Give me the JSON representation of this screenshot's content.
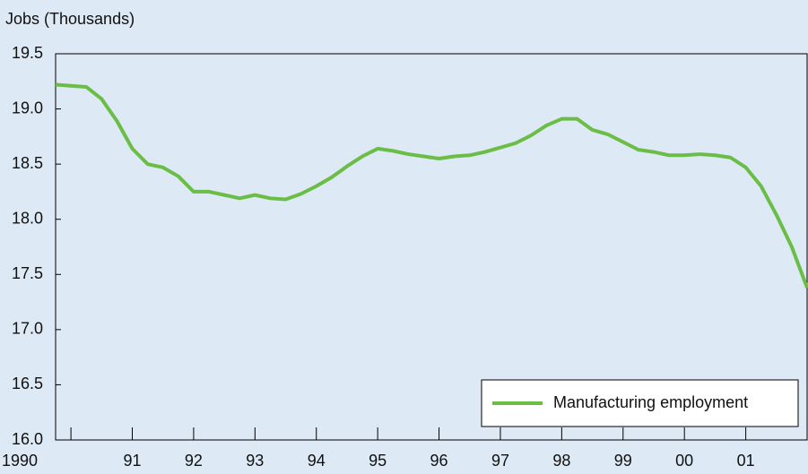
{
  "chart_data": {
    "type": "line",
    "y_label": "Jobs (Thousands)",
    "x": [
      1989.75,
      1990.0,
      1990.25,
      1990.5,
      1990.75,
      1991.0,
      1991.25,
      1991.5,
      1991.75,
      1992.0,
      1992.25,
      1992.5,
      1992.75,
      1993.0,
      1993.25,
      1993.5,
      1993.75,
      1994.0,
      1994.25,
      1994.5,
      1994.75,
      1995.0,
      1995.25,
      1995.5,
      1995.75,
      1996.0,
      1996.25,
      1996.5,
      1996.75,
      1997.0,
      1997.25,
      1997.5,
      1997.75,
      1998.0,
      1998.25,
      1998.5,
      1998.75,
      1999.0,
      1999.25,
      1999.5,
      1999.75,
      2000.0,
      2000.25,
      2000.5,
      2000.75,
      2001.0,
      2001.25,
      2001.5,
      2001.75,
      2002.0
    ],
    "series": [
      {
        "name": "Manufacturing employment",
        "color": "#6abd45",
        "values": [
          19.22,
          19.21,
          19.2,
          19.09,
          18.89,
          18.64,
          18.5,
          18.47,
          18.39,
          18.25,
          18.25,
          18.22,
          18.19,
          18.22,
          18.19,
          18.18,
          18.23,
          18.3,
          18.38,
          18.48,
          18.57,
          18.64,
          18.62,
          18.59,
          18.57,
          18.55,
          18.57,
          18.58,
          18.61,
          18.65,
          18.69,
          18.76,
          18.85,
          18.91,
          18.91,
          18.81,
          18.77,
          18.7,
          18.63,
          18.61,
          18.58,
          18.58,
          18.59,
          18.58,
          18.56,
          18.47,
          18.3,
          18.04,
          17.75,
          17.38
        ]
      }
    ],
    "xlim": [
      1989.75,
      2002.0
    ],
    "xticks": [
      {
        "value": 1990,
        "label": "1990"
      },
      {
        "value": 1991,
        "label": "91"
      },
      {
        "value": 1992,
        "label": "92"
      },
      {
        "value": 1993,
        "label": "93"
      },
      {
        "value": 1994,
        "label": "94"
      },
      {
        "value": 1995,
        "label": "95"
      },
      {
        "value": 1996,
        "label": "96"
      },
      {
        "value": 1997,
        "label": "97"
      },
      {
        "value": 1998,
        "label": "98"
      },
      {
        "value": 1999,
        "label": "99"
      },
      {
        "value": 2000,
        "label": "00"
      },
      {
        "value": 2001,
        "label": "01"
      }
    ],
    "ylim": [
      16.0,
      19.5
    ],
    "yticks": [
      {
        "value": 16.0,
        "label": "16.0"
      },
      {
        "value": 16.5,
        "label": "16.5"
      },
      {
        "value": 17.0,
        "label": "17.0"
      },
      {
        "value": 17.5,
        "label": "17.5"
      },
      {
        "value": 18.0,
        "label": "18.0"
      },
      {
        "value": 18.5,
        "label": "18.5"
      },
      {
        "value": 19.0,
        "label": "19.0"
      },
      {
        "value": 19.5,
        "label": "19.5"
      }
    ],
    "legend": "lower right"
  }
}
